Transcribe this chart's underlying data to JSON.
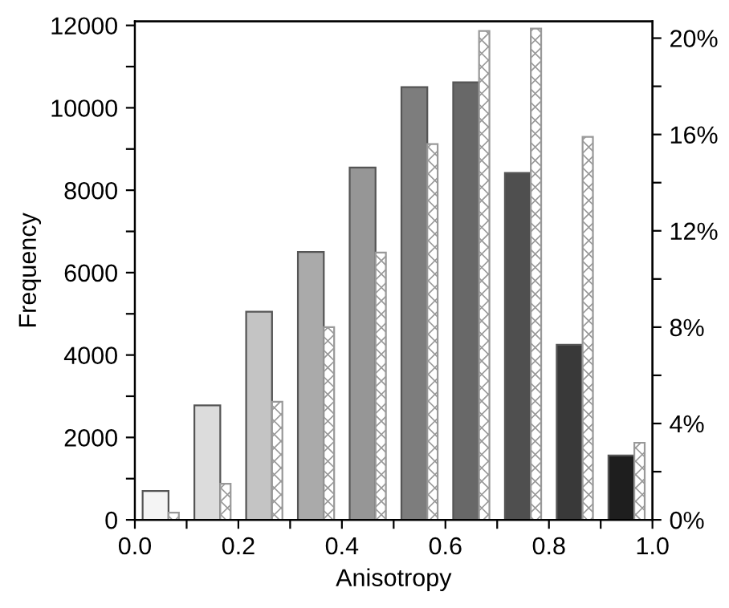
{
  "chart_data": {
    "type": "histogram",
    "xlabel": "Anisotropy",
    "ylabel": "Frequency",
    "bins": [
      0.0,
      0.1,
      0.2,
      0.3,
      0.4,
      0.5,
      0.6,
      0.7,
      0.8,
      0.9,
      1.0
    ],
    "series": [
      {
        "colors": [
          "#f4f4f4",
          "#dcdcdc",
          "#c4c4c4",
          "#aaaaaa",
          "#969696",
          "#7d7d7d",
          "#686868",
          "#4f4f4f",
          "#393939",
          "#1e1e1e"
        ],
        "values": [
          700,
          2780,
          5050,
          6500,
          8550,
          10500,
          10620,
          8420,
          4250,
          1560
        ]
      },
      {
        "color": "#999999",
        "axis": "y2",
        "values": [
          0.3,
          1.5,
          4.9,
          8.0,
          11.1,
          15.6,
          20.3,
          20.4,
          15.9,
          3.2
        ]
      }
    ],
    "xlim": [
      0.0,
      1.0
    ],
    "xticks": [
      {
        "value": 0.0,
        "label": "0.0"
      },
      {
        "value": 0.1,
        "label": null
      },
      {
        "value": 0.2,
        "label": "0.2"
      },
      {
        "value": 0.3,
        "label": null
      },
      {
        "value": 0.4,
        "label": "0.4"
      },
      {
        "value": 0.5,
        "label": null
      },
      {
        "value": 0.6,
        "label": "0.6"
      },
      {
        "value": 0.7,
        "label": null
      },
      {
        "value": 0.8,
        "label": "0.8"
      },
      {
        "value": 0.9,
        "label": null
      },
      {
        "value": 1.0,
        "label": "1.0"
      }
    ],
    "ylim": [
      0,
      12100
    ],
    "yticks": [
      0,
      {
        "value": 1000,
        "label": null
      },
      2000,
      {
        "value": 3000,
        "label": null
      },
      4000,
      {
        "value": 5000,
        "label": null
      },
      6000,
      {
        "value": 7000,
        "label": null
      },
      8000,
      {
        "value": 9000,
        "label": null
      },
      10000,
      {
        "value": 11000,
        "label": null
      },
      12000
    ],
    "y2lim": [
      0,
      20.7
    ],
    "y2ticks": [
      {
        "value": 0,
        "label": "0%"
      },
      {
        "value": 2,
        "label": null
      },
      {
        "value": 4,
        "label": "4%"
      },
      {
        "value": 6,
        "label": null
      },
      {
        "value": 8,
        "label": "8%"
      },
      {
        "value": 10,
        "label": null
      },
      {
        "value": 12,
        "label": "12%"
      },
      {
        "value": 14,
        "label": null
      },
      {
        "value": 16,
        "label": "16%"
      },
      {
        "value": 18,
        "label": null
      },
      {
        "value": 20,
        "label": "20%"
      }
    ],
    "grid": false,
    "legend": false
  }
}
